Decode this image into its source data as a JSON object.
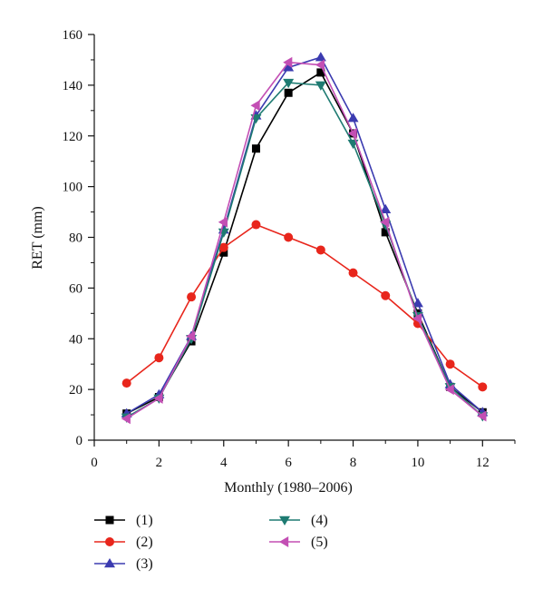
{
  "chart_data": {
    "type": "line",
    "xlabel": "Monthly (1980–2006)",
    "ylabel": "RET (mm)",
    "xlim": [
      0,
      13
    ],
    "ylim": [
      0,
      160
    ],
    "x_ticks": [
      0,
      2,
      4,
      6,
      8,
      10,
      12
    ],
    "y_ticks": [
      0,
      20,
      40,
      60,
      80,
      100,
      120,
      140,
      160
    ],
    "grid": false,
    "legend_position": "bottom-left",
    "x": [
      1,
      2,
      3,
      4,
      5,
      6,
      7,
      8,
      9,
      10,
      11,
      12
    ],
    "series": [
      {
        "name": "(1)",
        "color": "#000000",
        "marker": "square",
        "values": [
          10.5,
          17,
          39,
          74,
          115,
          137,
          145,
          121,
          82,
          50,
          21,
          11
        ]
      },
      {
        "name": "(2)",
        "color": "#e8261c",
        "marker": "circle",
        "values": [
          22.5,
          32.5,
          56.5,
          76,
          85,
          80,
          75,
          66,
          57,
          46,
          30,
          21
        ]
      },
      {
        "name": "(3)",
        "color": "#3b3bb0",
        "marker": "triangle-up",
        "values": [
          10.5,
          18,
          41,
          83,
          128,
          147,
          151,
          127,
          91,
          54,
          22,
          11
        ]
      },
      {
        "name": "(4)",
        "color": "#1e7b72",
        "marker": "triangle-down",
        "values": [
          9,
          16.5,
          40,
          82,
          127,
          141,
          140,
          117,
          85,
          49,
          21,
          9.5
        ]
      },
      {
        "name": "(5)",
        "color": "#c34fb4",
        "marker": "triangle-left",
        "values": [
          8.5,
          16.5,
          41,
          86,
          132,
          149,
          148,
          121,
          86,
          48,
          20,
          9.5
        ]
      }
    ]
  }
}
